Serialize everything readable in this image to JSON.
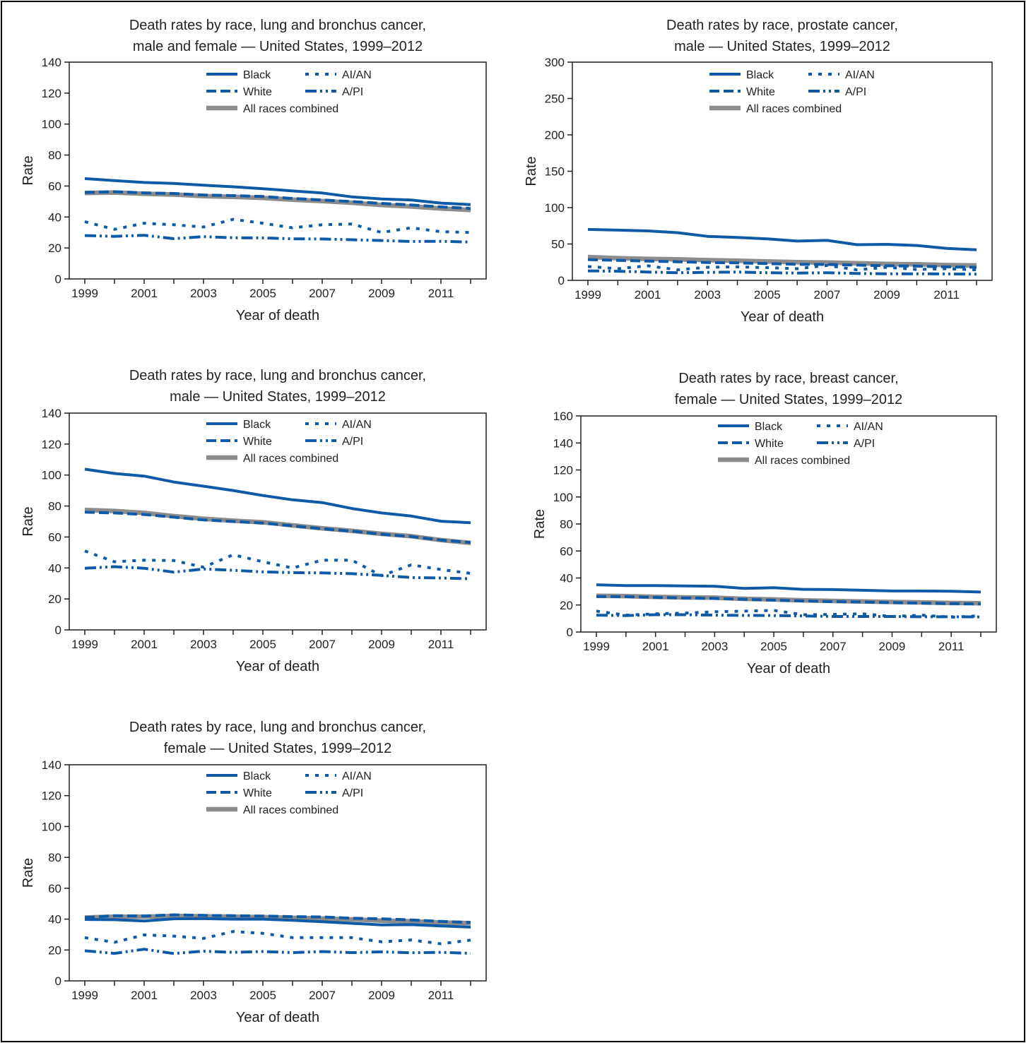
{
  "colors": {
    "race_line": "#0e5aa7",
    "all_races": "#8c8c8c",
    "axis": "#231f20",
    "text": "#231f20"
  },
  "legend": [
    {
      "key": "black",
      "label": "Black",
      "style": "solid"
    },
    {
      "key": "aian",
      "label": "AI/AN",
      "style": "dotted"
    },
    {
      "key": "white",
      "label": "White",
      "style": "dashed"
    },
    {
      "key": "api",
      "label": "A/PI",
      "style": "dash-dot-dot"
    },
    {
      "key": "all",
      "label": "All races combined",
      "style": "gray-thick"
    }
  ],
  "chart_data": [
    {
      "id": "lung-both",
      "type": "line",
      "title": [
        "Death rates by race, lung and bronchus cancer,",
        "male and female — United States, 1999–2012"
      ],
      "xlabel": "Year of death",
      "ylabel": "Rate",
      "ylim": [
        0,
        140
      ],
      "yticks": [
        0,
        20,
        40,
        60,
        80,
        100,
        120,
        140
      ],
      "xticks": [
        1999,
        2001,
        2003,
        2005,
        2007,
        2009,
        2011
      ],
      "x": [
        1999,
        2000,
        2001,
        2002,
        2003,
        2004,
        2005,
        2006,
        2007,
        2008,
        2009,
        2010,
        2011,
        2012
      ],
      "series": [
        {
          "key": "all",
          "name": "All races combined",
          "values": [
            55.5,
            55.8,
            55.0,
            54.5,
            53.5,
            53.0,
            52.3,
            51.2,
            50.3,
            49.2,
            47.8,
            46.8,
            45.5,
            44.5
          ]
        },
        {
          "key": "black",
          "name": "Black",
          "values": [
            64.8,
            63.5,
            62.3,
            61.7,
            60.5,
            59.5,
            58.3,
            56.8,
            55.5,
            53.0,
            51.6,
            51.0,
            49.0,
            48.0
          ]
        },
        {
          "key": "white",
          "name": "White",
          "values": [
            55.8,
            56.3,
            55.6,
            55.2,
            54.2,
            53.8,
            53.2,
            52.0,
            51.0,
            50.0,
            48.8,
            47.8,
            46.5,
            45.5
          ]
        },
        {
          "key": "aian",
          "name": "AI/AN",
          "values": [
            37.0,
            32.0,
            36.0,
            35.0,
            33.5,
            38.5,
            36.0,
            33.0,
            35.0,
            35.5,
            30.0,
            33.0,
            30.5,
            30.0
          ]
        },
        {
          "key": "api",
          "name": "A/PI",
          "values": [
            28.0,
            27.5,
            28.2,
            26.0,
            27.3,
            26.6,
            26.5,
            25.9,
            25.8,
            25.3,
            24.8,
            24.2,
            24.3,
            23.8
          ]
        }
      ]
    },
    {
      "id": "prostate",
      "type": "line",
      "title": [
        "Death rates by race, prostate cancer,",
        "male — United States, 1999–2012"
      ],
      "xlabel": "Year of death",
      "ylabel": "Rate",
      "ylim": [
        0,
        300
      ],
      "yticks": [
        0,
        50,
        100,
        150,
        200,
        250,
        300
      ],
      "xticks": [
        1999,
        2001,
        2003,
        2005,
        2007,
        2009,
        2011
      ],
      "x": [
        1999,
        2000,
        2001,
        2002,
        2003,
        2004,
        2005,
        2006,
        2007,
        2008,
        2009,
        2010,
        2011,
        2012
      ],
      "series": [
        {
          "key": "all",
          "name": "All races combined",
          "values": [
            32.0,
            30.5,
            29.5,
            28.8,
            27.8,
            27.0,
            26.0,
            25.0,
            24.5,
            23.5,
            22.5,
            22.0,
            21.0,
            20.5
          ]
        },
        {
          "key": "black",
          "name": "Black",
          "values": [
            70.0,
            69.0,
            68.0,
            65.5,
            60.5,
            59.0,
            57.0,
            54.0,
            55.0,
            49.0,
            49.5,
            48.0,
            44.0,
            42.0
          ]
        },
        {
          "key": "white",
          "name": "White",
          "values": [
            28.5,
            27.5,
            26.5,
            25.5,
            24.5,
            24.0,
            23.0,
            22.0,
            21.8,
            21.0,
            20.0,
            19.5,
            18.5,
            18.0
          ]
        },
        {
          "key": "aian",
          "name": "AI/AN",
          "values": [
            19.0,
            16.0,
            20.0,
            14.5,
            18.0,
            18.5,
            17.5,
            16.0,
            20.5,
            14.5,
            18.0,
            15.0,
            16.0,
            14.5
          ]
        },
        {
          "key": "api",
          "name": "A/PI",
          "values": [
            13.0,
            12.5,
            11.5,
            10.5,
            11.0,
            11.5,
            10.5,
            10.0,
            10.5,
            9.5,
            9.0,
            9.0,
            8.8,
            8.5
          ]
        }
      ]
    },
    {
      "id": "lung-male",
      "type": "line",
      "title": [
        "Death rates by race, lung and bronchus cancer,",
        "male — United States, 1999–2012"
      ],
      "xlabel": "Year of death",
      "ylabel": "Rate",
      "ylim": [
        0,
        140
      ],
      "yticks": [
        0,
        20,
        40,
        60,
        80,
        100,
        120,
        140
      ],
      "xticks": [
        1999,
        2001,
        2003,
        2005,
        2007,
        2009,
        2011
      ],
      "x": [
        1999,
        2000,
        2001,
        2002,
        2003,
        2004,
        2005,
        2006,
        2007,
        2008,
        2009,
        2010,
        2011,
        2012
      ],
      "series": [
        {
          "key": "all",
          "name": "All races combined",
          "values": [
            77.5,
            76.8,
            75.5,
            73.5,
            71.8,
            70.5,
            69.5,
            67.5,
            65.6,
            64.0,
            62.0,
            60.5,
            58.0,
            56.2
          ]
        },
        {
          "key": "black",
          "name": "Black",
          "values": [
            103.8,
            101.0,
            99.3,
            95.5,
            92.8,
            90.0,
            86.8,
            84.0,
            82.2,
            78.4,
            75.5,
            73.5,
            70.2,
            69.2
          ]
        },
        {
          "key": "white",
          "name": "White",
          "values": [
            76.0,
            75.5,
            74.5,
            72.8,
            71.0,
            70.0,
            69.0,
            67.2,
            65.3,
            63.8,
            61.8,
            60.3,
            58.0,
            56.4
          ]
        },
        {
          "key": "aian",
          "name": "AI/AN",
          "values": [
            51.0,
            44.0,
            45.0,
            44.8,
            40.5,
            48.5,
            44.0,
            40.0,
            45.0,
            45.0,
            35.0,
            42.0,
            39.0,
            36.5
          ]
        },
        {
          "key": "api",
          "name": "A/PI",
          "values": [
            39.8,
            40.8,
            39.8,
            37.3,
            39.3,
            38.5,
            37.5,
            37.0,
            36.8,
            36.3,
            35.2,
            33.8,
            33.5,
            33.0
          ]
        }
      ]
    },
    {
      "id": "breast",
      "type": "line",
      "title": [
        "Death rates by race, breast cancer,",
        "female — United States, 1999–2012"
      ],
      "xlabel": "Year of death",
      "ylabel": "Rate",
      "ylim": [
        0,
        160
      ],
      "yticks": [
        0,
        20,
        40,
        60,
        80,
        100,
        120,
        140,
        160
      ],
      "xticks": [
        1999,
        2001,
        2003,
        2005,
        2007,
        2009,
        2011
      ],
      "x": [
        1999,
        2000,
        2001,
        2002,
        2003,
        2004,
        2005,
        2006,
        2007,
        2008,
        2009,
        2010,
        2011,
        2012
      ],
      "series": [
        {
          "key": "all",
          "name": "All races combined",
          "values": [
            26.8,
            26.6,
            26.0,
            25.6,
            25.4,
            24.6,
            24.1,
            23.5,
            23.0,
            22.6,
            22.2,
            21.9,
            21.5,
            21.3
          ]
        },
        {
          "key": "black",
          "name": "Black",
          "values": [
            35.0,
            34.4,
            34.4,
            34.1,
            33.9,
            32.3,
            32.8,
            31.6,
            31.4,
            30.9,
            30.4,
            30.4,
            30.2,
            29.6
          ]
        },
        {
          "key": "white",
          "name": "White",
          "values": [
            26.3,
            26.2,
            25.6,
            25.2,
            24.9,
            24.2,
            23.6,
            23.0,
            22.5,
            22.2,
            21.8,
            21.4,
            21.0,
            20.8
          ]
        },
        {
          "key": "aian",
          "name": "AI/AN",
          "values": [
            15.5,
            12.5,
            13.5,
            14.0,
            15.0,
            15.5,
            16.0,
            12.8,
            13.0,
            13.5,
            11.5,
            12.5,
            11.0,
            12.0
          ]
        },
        {
          "key": "api",
          "name": "A/PI",
          "values": [
            12.5,
            12.2,
            12.8,
            12.8,
            12.5,
            12.3,
            12.2,
            11.9,
            11.5,
            11.5,
            11.5,
            11.3,
            11.3,
            11.2
          ]
        }
      ]
    },
    {
      "id": "lung-female",
      "type": "line",
      "title": [
        "Death rates by race, lung and bronchus cancer,",
        "female — United States, 1999–2012"
      ],
      "xlabel": "Year of death",
      "ylabel": "Rate",
      "ylim": [
        0,
        140
      ],
      "yticks": [
        0,
        20,
        40,
        60,
        80,
        100,
        120,
        140
      ],
      "xticks": [
        1999,
        2001,
        2003,
        2005,
        2007,
        2009,
        2011
      ],
      "x": [
        1999,
        2000,
        2001,
        2002,
        2003,
        2004,
        2005,
        2006,
        2007,
        2008,
        2009,
        2010,
        2011,
        2012
      ],
      "series": [
        {
          "key": "all",
          "name": "All races combined",
          "values": [
            41.0,
            41.6,
            41.6,
            42.0,
            41.8,
            41.6,
            41.3,
            40.8,
            40.4,
            39.8,
            39.0,
            38.6,
            37.8,
            37.4
          ]
        },
        {
          "key": "black",
          "name": "Black",
          "values": [
            39.8,
            39.6,
            38.8,
            40.2,
            40.3,
            40.0,
            40.0,
            39.2,
            38.3,
            37.3,
            36.3,
            36.4,
            35.6,
            34.8
          ]
        },
        {
          "key": "white",
          "name": "White",
          "values": [
            41.0,
            42.2,
            42.0,
            42.8,
            42.4,
            42.2,
            42.0,
            41.6,
            41.4,
            40.6,
            40.2,
            39.5,
            38.5,
            37.8
          ]
        },
        {
          "key": "aian",
          "name": "AI/AN",
          "values": [
            28.0,
            25.0,
            29.8,
            29.0,
            27.5,
            32.0,
            30.8,
            28.0,
            28.0,
            28.0,
            25.3,
            26.5,
            24.0,
            26.4
          ]
        },
        {
          "key": "api",
          "name": "A/PI",
          "values": [
            19.5,
            17.8,
            20.5,
            17.7,
            19.2,
            18.5,
            19.0,
            18.3,
            19.0,
            18.3,
            18.8,
            18.2,
            18.5,
            17.8
          ]
        }
      ]
    }
  ]
}
